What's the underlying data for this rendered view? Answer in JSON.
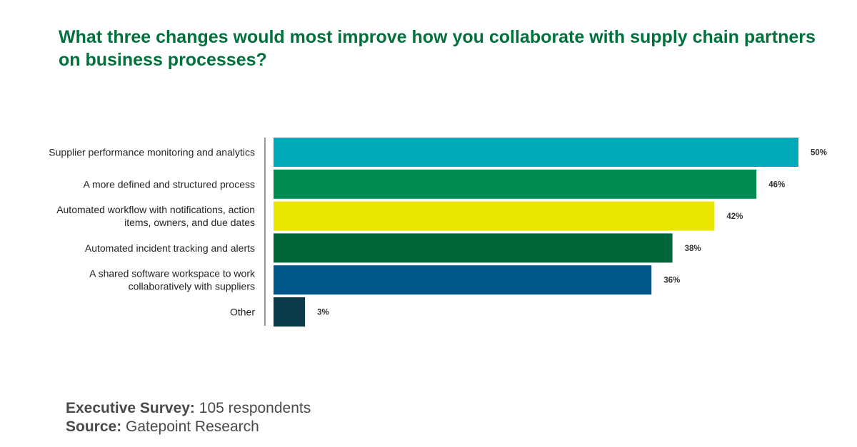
{
  "title": "What three changes would most improve how you collaborate with supply chain partners on business processes?",
  "chart_data": {
    "type": "bar",
    "orientation": "horizontal",
    "categories": [
      [
        "Supplier performance monitoring and analytics"
      ],
      [
        "A more defined and structured process"
      ],
      [
        "Automated workflow with notifications, action",
        "items, owners, and due dates"
      ],
      [
        "Automated incident tracking and alerts"
      ],
      [
        "A shared software workspace to work",
        "collaboratively with suppliers"
      ],
      [
        "Other"
      ]
    ],
    "values": [
      50,
      46,
      42,
      38,
      36,
      3
    ],
    "value_labels": [
      "50%",
      "46%",
      "42%",
      "38%",
      "36%",
      "3%"
    ],
    "colors": [
      "#00a9b8",
      "#008b53",
      "#e9e600",
      "#00673a",
      "#005589",
      "#0b3a49"
    ],
    "unit": "%",
    "xlim": [
      0,
      50
    ],
    "grid": false,
    "legend": "none"
  },
  "footer": {
    "survey_label": "Executive Survey:",
    "survey_value": " 105 respondents",
    "source_label": "Source:",
    "source_value": " Gatepoint Research"
  }
}
